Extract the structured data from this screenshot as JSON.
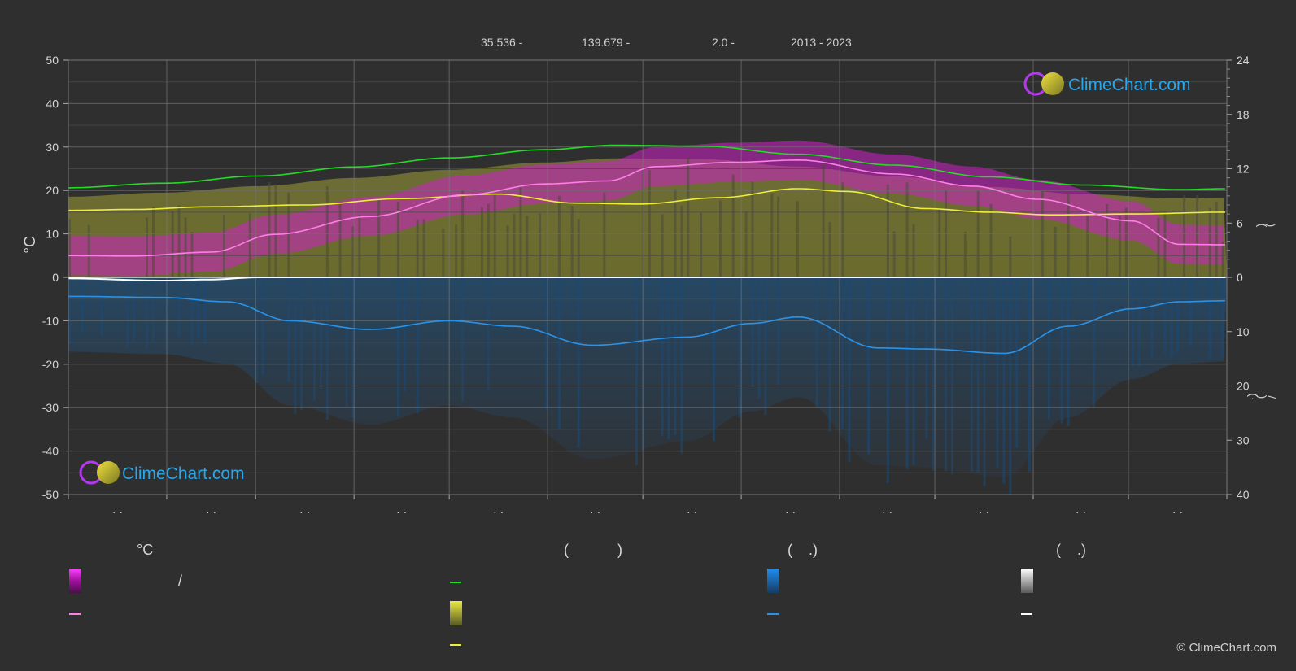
{
  "header": {
    "lat": "35.536 -",
    "lon": "139.679 -",
    "elev": "2.0 -",
    "years": "2013 - 2023"
  },
  "logo_text": "ClimeChart.com",
  "copyright": "© ClimeChart.com",
  "legend": {
    "temp_head": "°C",
    "sun_head": "(            )",
    "rain_head": "(    .)",
    "snow_head": "(    .)",
    "slash": "/"
  },
  "right_axis_labels": {
    "upper": ")\n\n(",
    "lower": "/\n\n)\n\n(·"
  },
  "colors": {
    "background": "#2f2f2f",
    "temp_band": "#e020e0",
    "temp_line": "#ff7de8",
    "daylight_line": "#22dd22",
    "sunshine_band": "#c8c83a",
    "sunshine_line": "#eded3a",
    "rain_band": "#1e6fb0",
    "rain_line": "#2a93e8",
    "snow_line": "#ffffff",
    "grid": "#666666"
  },
  "chart_data": {
    "type": "line",
    "title": "",
    "left_axis": {
      "label": "°C",
      "ylim": [
        -50,
        50
      ],
      "ticks": [
        50,
        40,
        30,
        20,
        10,
        0,
        -10,
        -20,
        -30,
        -40,
        -50
      ]
    },
    "right_axis_top": {
      "ylim": [
        0,
        24
      ],
      "ticks": [
        24,
        18,
        12,
        6,
        0
      ]
    },
    "right_axis_bottom": {
      "ylim": [
        0,
        40
      ],
      "ticks": [
        0,
        10,
        20,
        30,
        40
      ]
    },
    "x_ticks": [
      "· ·",
      "· ·",
      "· ·",
      "· ·",
      "· ·",
      "· ·",
      "· ·",
      "· ·",
      "· ·",
      "· ·",
      "· ·",
      "· ·"
    ],
    "x_days": [
      0,
      31,
      59,
      90,
      120,
      151,
      181,
      212,
      243,
      273,
      304,
      334,
      365
    ],
    "series": [
      {
        "key": "daylight",
        "axis": "hours",
        "x": [
          0,
          30,
          60,
          90,
          120,
          150,
          172,
          200,
          230,
          260,
          290,
          320,
          350,
          365
        ],
        "y": [
          9.9,
          10.4,
          11.2,
          12.2,
          13.2,
          14.1,
          14.6,
          14.5,
          13.6,
          12.4,
          11.1,
          10.2,
          9.7,
          9.8
        ]
      },
      {
        "key": "sunshine",
        "axis": "hours",
        "x": [
          0,
          20,
          45,
          75,
          105,
          135,
          160,
          180,
          205,
          230,
          245,
          270,
          290,
          310,
          335,
          365
        ],
        "y": [
          7.4,
          7.5,
          7.8,
          8.0,
          8.7,
          9.2,
          8.2,
          8.1,
          8.8,
          9.8,
          9.5,
          7.6,
          7.2,
          6.9,
          7.0,
          7.2
        ]
      },
      {
        "key": "temp_mean",
        "axis": "temp",
        "x": [
          0,
          20,
          45,
          65,
          95,
          125,
          150,
          170,
          185,
          210,
          230,
          260,
          285,
          305,
          335,
          350,
          365
        ],
        "y": [
          5.0,
          4.9,
          5.8,
          9.9,
          14.0,
          19.0,
          21.5,
          22.2,
          25.5,
          26.5,
          27.0,
          23.8,
          21.0,
          18.0,
          13.0,
          7.6,
          7.5
        ]
      },
      {
        "key": "rain",
        "axis": "mm",
        "x": [
          0,
          30,
          50,
          70,
          95,
          120,
          140,
          165,
          195,
          215,
          230,
          255,
          270,
          295,
          315,
          335,
          350,
          365
        ],
        "y": [
          3.5,
          3.7,
          4.5,
          8.0,
          9.6,
          8.0,
          9.0,
          12.5,
          11.0,
          8.5,
          7.3,
          13.0,
          13.2,
          14.0,
          9.0,
          5.8,
          4.5,
          4.3
        ]
      },
      {
        "key": "snow",
        "axis": "mm",
        "x": [
          0,
          30,
          45,
          60,
          365
        ],
        "y": [
          0.2,
          0.6,
          0.4,
          0.0,
          0.0
        ]
      }
    ]
  }
}
